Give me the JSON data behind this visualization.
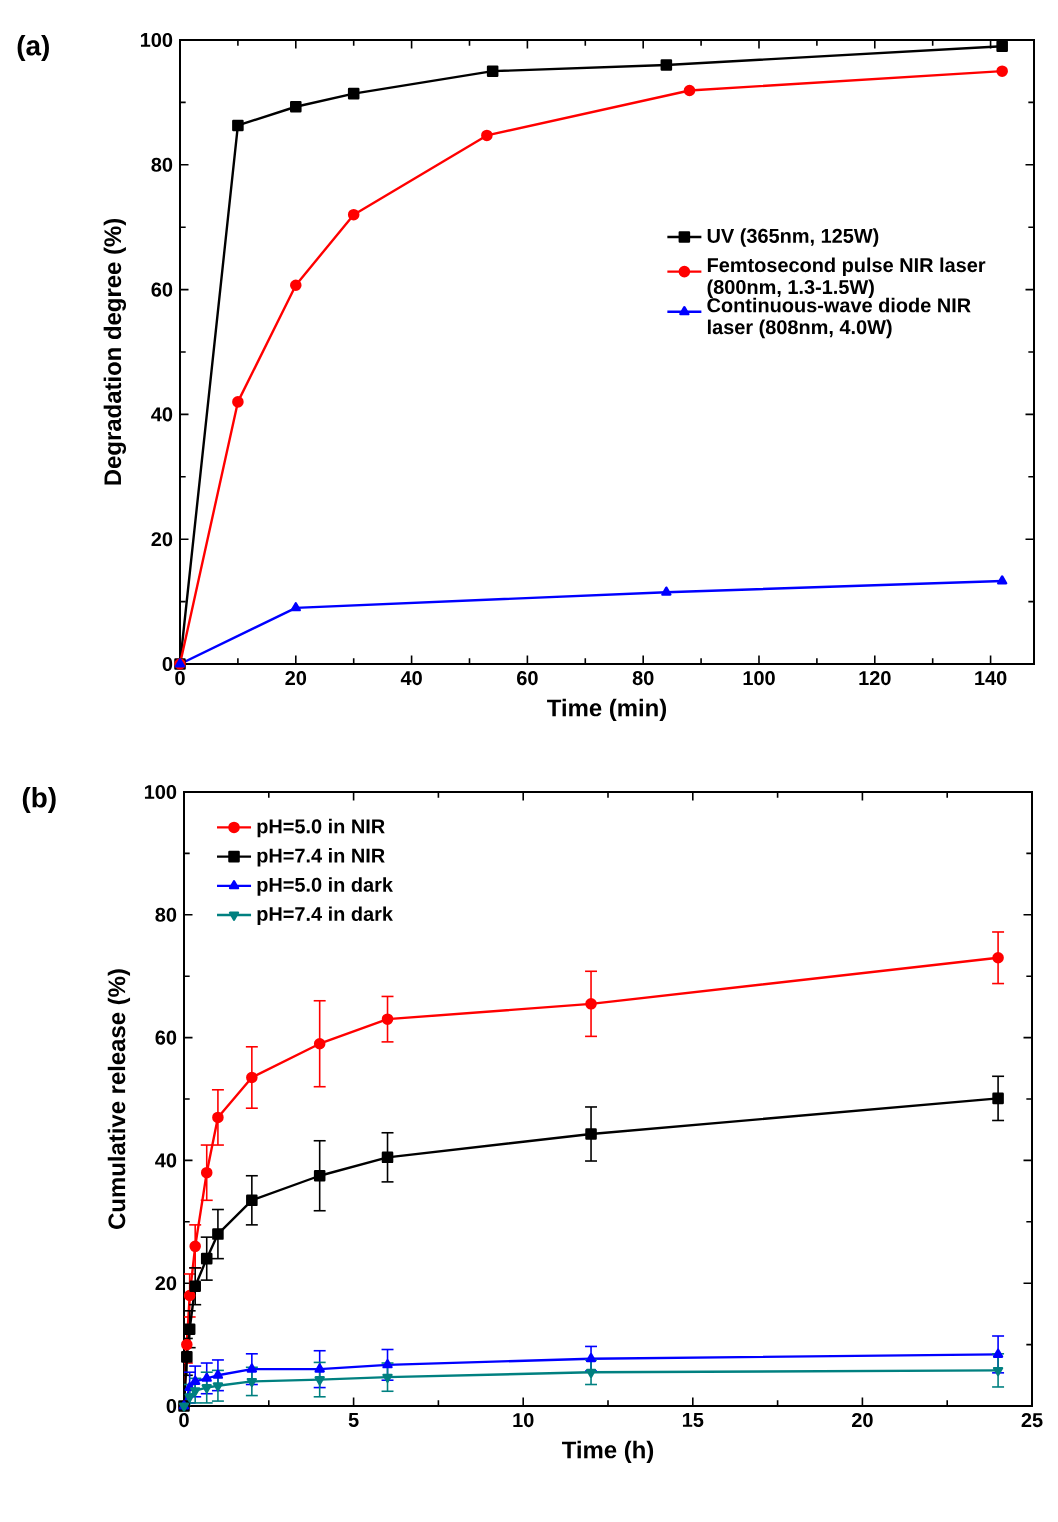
{
  "chart_data": [
    {
      "type": "line",
      "title": "(a)",
      "xlabel": "Time (min)",
      "ylabel": "Degradation degree (%)",
      "xlim": [
        0,
        147.5
      ],
      "ylim": [
        0,
        100
      ],
      "xticks": [
        0,
        20,
        40,
        60,
        80,
        100,
        120,
        140
      ],
      "yticks": [
        0,
        20,
        40,
        60,
        80,
        100
      ],
      "legend": "right",
      "grid": false,
      "series": [
        {
          "name": "UV (365nm, 125W)",
          "color": "#000000",
          "marker": "square",
          "x": [
            0,
            10,
            20,
            30,
            54,
            84,
            142
          ],
          "values": [
            0,
            86.3,
            89.3,
            91.4,
            95,
            96,
            99
          ]
        },
        {
          "name": "Femtosecond pulse NIR laser (800nm, 1.3-1.5W)",
          "color": "#ff0000",
          "marker": "circle",
          "x": [
            0,
            10,
            20,
            30,
            53,
            88,
            142
          ],
          "values": [
            0,
            42,
            60.7,
            72,
            84.7,
            91.9,
            95
          ]
        },
        {
          "name": "Continuous-wave diode NIR laser (808nm, 4.0W)",
          "color": "#0000ff",
          "marker": "triangle",
          "x": [
            0,
            20,
            84,
            142
          ],
          "values": [
            0,
            9,
            11.5,
            13.3
          ]
        }
      ]
    },
    {
      "type": "line",
      "title": "(b)",
      "xlabel": "Time (h)",
      "ylabel": "Cumulative release (%)",
      "xlim": [
        0,
        25
      ],
      "ylim": [
        0,
        100
      ],
      "xticks": [
        0,
        5,
        10,
        15,
        20,
        25
      ],
      "yticks": [
        0,
        20,
        40,
        60,
        80,
        100
      ],
      "legend": "top left",
      "grid": false,
      "series": [
        {
          "name": "pH=5.0 in NIR",
          "color": "#ff0000",
          "marker": "circle",
          "x": [
            0,
            0.083,
            0.167,
            0.33,
            0.67,
            1,
            2,
            4,
            6,
            12,
            24
          ],
          "values": [
            0,
            10,
            18,
            26,
            38,
            47,
            53.5,
            59,
            63,
            65.5,
            73
          ],
          "errors": [
            null,
            3,
            3.5,
            3.5,
            4.5,
            4.5,
            5,
            7,
            3.7,
            5.3,
            4.2
          ]
        },
        {
          "name": "pH=7.4 in NIR",
          "color": "#000000",
          "marker": "square",
          "x": [
            0,
            0.083,
            0.167,
            0.33,
            0.67,
            1,
            2,
            4,
            6,
            12,
            24
          ],
          "values": [
            0,
            8,
            12.5,
            19.5,
            24,
            28,
            33.5,
            37.5,
            40.5,
            44.3,
            50.1
          ],
          "errors": [
            null,
            3,
            3,
            3,
            3.5,
            4,
            4,
            5.7,
            4,
            4.4,
            3.6
          ]
        },
        {
          "name": "pH=5.0 in dark",
          "color": "#0000ff",
          "marker": "triangle",
          "x": [
            0,
            0.167,
            0.33,
            0.67,
            1,
            2,
            4,
            6,
            12,
            24
          ],
          "values": [
            0,
            3,
            4,
            4.5,
            5,
            6,
            6,
            6.7,
            7.7,
            8.4
          ],
          "errors": [
            null,
            2.5,
            2.5,
            2.5,
            2.5,
            2.5,
            3,
            2.5,
            2,
            3
          ]
        },
        {
          "name": "pH=7.4 in dark",
          "color": "#008080",
          "marker": "triangle down",
          "x": [
            0,
            0.167,
            0.33,
            0.67,
            1,
            2,
            4,
            6,
            12,
            24
          ],
          "values": [
            0,
            1.5,
            2.5,
            3,
            3.3,
            4,
            4.3,
            4.7,
            5.5,
            5.8
          ],
          "errors": [
            null,
            2,
            2,
            2.5,
            2.5,
            2.3,
            2.8,
            2.3,
            2,
            2.7
          ]
        }
      ]
    }
  ]
}
